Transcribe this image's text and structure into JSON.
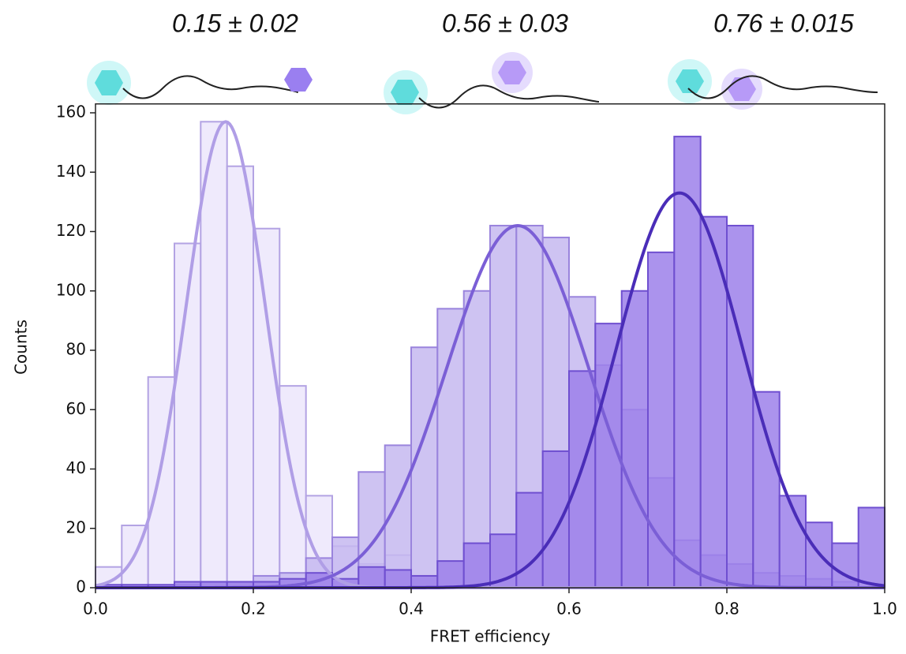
{
  "chart_data": {
    "type": "histogram",
    "annotations": [
      "0.15 ± 0.02",
      "0.56 ± 0.03",
      "0.76 ± 0.015"
    ],
    "xlabel": "FRET efficiency",
    "ylabel": "Counts",
    "xlim": [
      0,
      1
    ],
    "ylim": [
      0,
      163
    ],
    "xticks": [
      {
        "value": 0,
        "label": "0.0"
      },
      0.2,
      0.4,
      0.6,
      0.8,
      {
        "value": 1,
        "label": "1.0"
      }
    ],
    "yticks": [
      0,
      20,
      40,
      60,
      80,
      100,
      120,
      140,
      160
    ],
    "bins": [
      0,
      0.0333,
      0.0667,
      0.1,
      0.1333,
      0.1667,
      0.2,
      0.2333,
      0.2667,
      0.3,
      0.3333,
      0.3667,
      0.4,
      0.4333,
      0.4667,
      0.5,
      0.5333,
      0.5667,
      0.6,
      0.6333,
      0.6667,
      0.7,
      0.7333,
      0.7667,
      0.8,
      0.8333,
      0.8667,
      0.9,
      0.9333,
      0.9667,
      1.0
    ],
    "series": [
      {
        "color": "#ece6fb",
        "edge": "#b3a3e3",
        "line": "#b09ee6",
        "values": [
          7,
          21,
          71,
          116,
          157,
          142,
          121,
          68,
          31,
          14,
          8,
          11,
          0,
          0,
          0,
          0,
          0,
          0,
          0,
          0,
          0,
          0,
          0,
          0,
          0,
          0,
          0,
          0,
          0,
          0
        ],
        "fit": {
          "mean": 0.165,
          "sd": 0.05,
          "peak": 157
        }
      },
      {
        "color": "#c6b8f0",
        "edge": "#9a84dd",
        "line": "#7b5fd6",
        "values": [
          0,
          0,
          0,
          1,
          2,
          2,
          4,
          5,
          10,
          17,
          39,
          48,
          81,
          94,
          100,
          122,
          122,
          118,
          98,
          75,
          60,
          37,
          16,
          11,
          8,
          5,
          4,
          3,
          2,
          0
        ],
        "fit": {
          "mean": 0.535,
          "sd": 0.09,
          "peak": 122
        }
      },
      {
        "color": "#9c80ea",
        "edge": "#6f4fd0",
        "line": "#4a2db8",
        "values": [
          1,
          1,
          1,
          2,
          2,
          2,
          2,
          3,
          5,
          3,
          7,
          6,
          4,
          9,
          15,
          18,
          32,
          46,
          73,
          89,
          100,
          113,
          152,
          125,
          122,
          66,
          31,
          22,
          15,
          27
        ],
        "fit": {
          "mean": 0.74,
          "sd": 0.08,
          "peak": 133
        }
      }
    ]
  }
}
